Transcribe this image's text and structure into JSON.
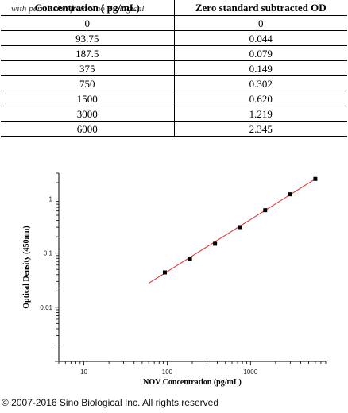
{
  "watermark": "with permission from Sino Biological",
  "table": {
    "headers": [
      "Concentration ( pg/mL)",
      "Zero standard subtracted OD"
    ],
    "rows": [
      [
        "0",
        "0"
      ],
      [
        "93.75",
        "0.044"
      ],
      [
        "187.5",
        "0.079"
      ],
      [
        "375",
        "0.149"
      ],
      [
        "750",
        "0.302"
      ],
      [
        "1500",
        "0.620"
      ],
      [
        "3000",
        "1.219"
      ],
      [
        "6000",
        "2.345"
      ]
    ]
  },
  "chart_data": {
    "type": "scatter",
    "x": [
      93.75,
      187.5,
      375,
      750,
      1500,
      3000,
      6000
    ],
    "y": [
      0.044,
      0.079,
      0.149,
      0.302,
      0.62,
      1.219,
      2.345
    ],
    "title": "",
    "xlabel": "NOV Concentration (pg/mL)",
    "ylabel": "Optical Density (450nm)",
    "xscale": "log",
    "yscale": "log",
    "xlim": [
      5,
      8000
    ],
    "ylim": [
      0.001,
      3
    ],
    "xticks": [
      "10",
      "100",
      "1000"
    ],
    "yticks": [
      "0.01",
      "0.1",
      "1"
    ],
    "grid": false,
    "legend": "none",
    "fit_line": {
      "x": [
        60,
        6000
      ],
      "y": [
        0.0278,
        2.345
      ],
      "color": "#e03030"
    },
    "marker_color": "#000000"
  },
  "footer": "© 2007-2016 Sino Biological Inc. All rights reserved"
}
